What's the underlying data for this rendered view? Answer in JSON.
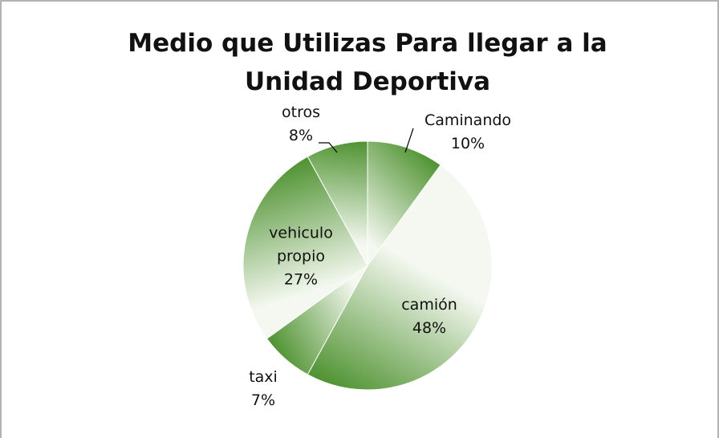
{
  "chart_data": {
    "type": "pie",
    "title": "Medio que Utilizas Para llegar a la Unidad Deportiva",
    "categories": [
      "Caminando",
      "camión",
      "taxi",
      "vehiculo propio",
      "otros"
    ],
    "values": [
      10,
      48,
      7,
      27,
      8
    ],
    "value_labels": [
      "10%",
      "48%",
      "7%",
      "27%",
      "8%"
    ],
    "color": "#4e9230"
  }
}
